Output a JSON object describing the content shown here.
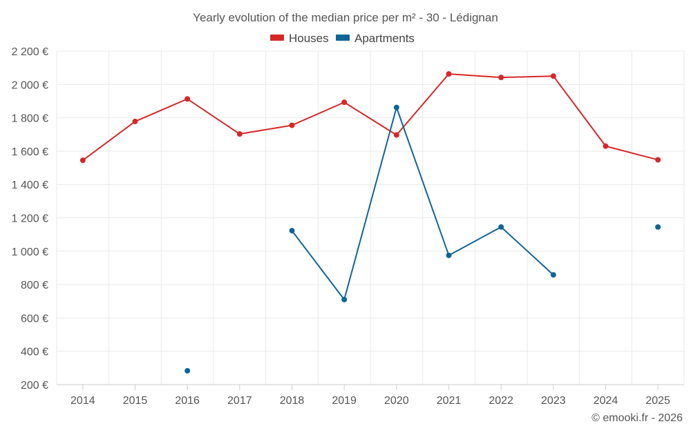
{
  "chart_data": {
    "type": "line",
    "title": "Yearly evolution of the median price per m² - 30 - Lédignan",
    "categories": [
      "2014",
      "2015",
      "2016",
      "2017",
      "2018",
      "2019",
      "2020",
      "2021",
      "2022",
      "2023",
      "2024",
      "2025"
    ],
    "ylim": [
      200,
      2200
    ],
    "yticks": [
      200,
      400,
      600,
      800,
      1000,
      1200,
      1400,
      1600,
      1800,
      2000,
      2200
    ],
    "ytick_labels": [
      "200 €",
      "400 €",
      "600 €",
      "800 €",
      "1 000 €",
      "1 200 €",
      "1 400 €",
      "1 600 €",
      "1 800 €",
      "2 000 €",
      "2 200 €"
    ],
    "grid": true,
    "legend_position": "top-center",
    "series": [
      {
        "name": "Houses",
        "color": "#d62728",
        "values": [
          1545,
          1778,
          1913,
          1703,
          1755,
          1893,
          1697,
          2063,
          2042,
          2050,
          1630,
          1548
        ]
      },
      {
        "name": "Apartments",
        "color": "#0e6499",
        "values": [
          null,
          null,
          283,
          null,
          1123,
          710,
          1862,
          975,
          1145,
          858,
          null,
          1145
        ]
      }
    ]
  },
  "credit": "© emooki.fr - 2026"
}
